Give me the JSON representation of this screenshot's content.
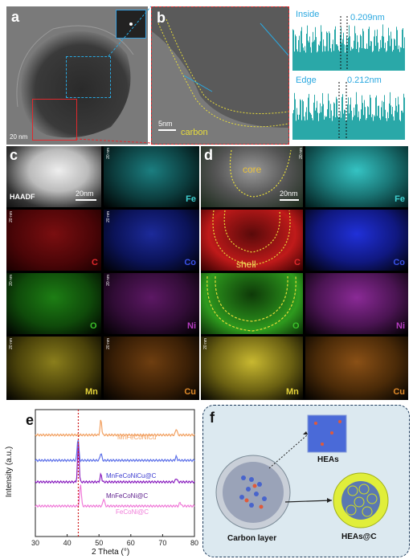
{
  "figure": {
    "labels": {
      "a": "a",
      "b": "b",
      "c": "c",
      "d": "d",
      "e": "e",
      "f": "f"
    },
    "panel_a": {
      "scale": "20 nm"
    },
    "panel_b": {
      "scale": "5nm",
      "carbon_label": "carbon"
    },
    "profiles": {
      "inside_label": "Inside",
      "inside_value": "0.209nm",
      "edge_label": "Edge",
      "edge_value": "0.212nm"
    },
    "panel_c": {
      "haadf": "HAADF",
      "scale": "20nm",
      "tiny_scale": "20 nm",
      "elements": [
        "Fe",
        "C",
        "Co",
        "O",
        "Ni",
        "Mn",
        "Cu"
      ]
    },
    "panel_d": {
      "core": "core",
      "shell": "shell",
      "scale": "20nm",
      "tiny_scale": "20 nm",
      "elements": [
        "Fe",
        "C",
        "Co",
        "O",
        "Ni",
        "Mn",
        "Cu"
      ]
    },
    "panel_f": {
      "heas": "HEAs",
      "carbon_layer": "Carbon layer",
      "heas_c": "HEAs@C"
    },
    "colors": {
      "fe": "#3fd1d1",
      "c": "#e0282c",
      "co": "#3a52e8",
      "o": "#3bbf2a",
      "ni": "#b43cbf",
      "mn": "#e4d23a",
      "cu": "#e08a2a",
      "annot": "#2aa8e0"
    }
  },
  "chart_data": {
    "type": "line",
    "xlabel": "2 Theta (°)",
    "ylabel": "Intensity (a.u.)",
    "xlim": [
      30,
      80
    ],
    "x_ticks": [
      "30",
      "40",
      "50",
      "60",
      "70",
      "80"
    ],
    "reference_line_x": 43.5,
    "series": [
      {
        "name": "MnFeCoNiCu",
        "color": "#f2a060",
        "baseline": 0.8,
        "peaks": [
          [
            50.6,
            0.12
          ],
          [
            74.3,
            0.05
          ]
        ]
      },
      {
        "name": "MnFeCoNiCu@C",
        "color": "#5b6fe8",
        "baseline": 0.6,
        "peaks": [
          [
            43.4,
            0.18
          ],
          [
            50.6,
            0.06
          ],
          [
            74.3,
            0.03
          ]
        ]
      },
      {
        "name": "MnFeCoNi@C",
        "color": "#8a1fbf",
        "baseline": 0.43,
        "peaks": [
          [
            43.5,
            0.3
          ],
          [
            50.6,
            0.06
          ],
          [
            74.3,
            0.03
          ]
        ]
      },
      {
        "name": "FeCoNi@C",
        "color": "#f07ad8",
        "baseline": 0.24,
        "peaks": [
          [
            44.2,
            0.18
          ],
          [
            51.5,
            0.06
          ],
          [
            75.5,
            0.03
          ]
        ]
      }
    ]
  }
}
